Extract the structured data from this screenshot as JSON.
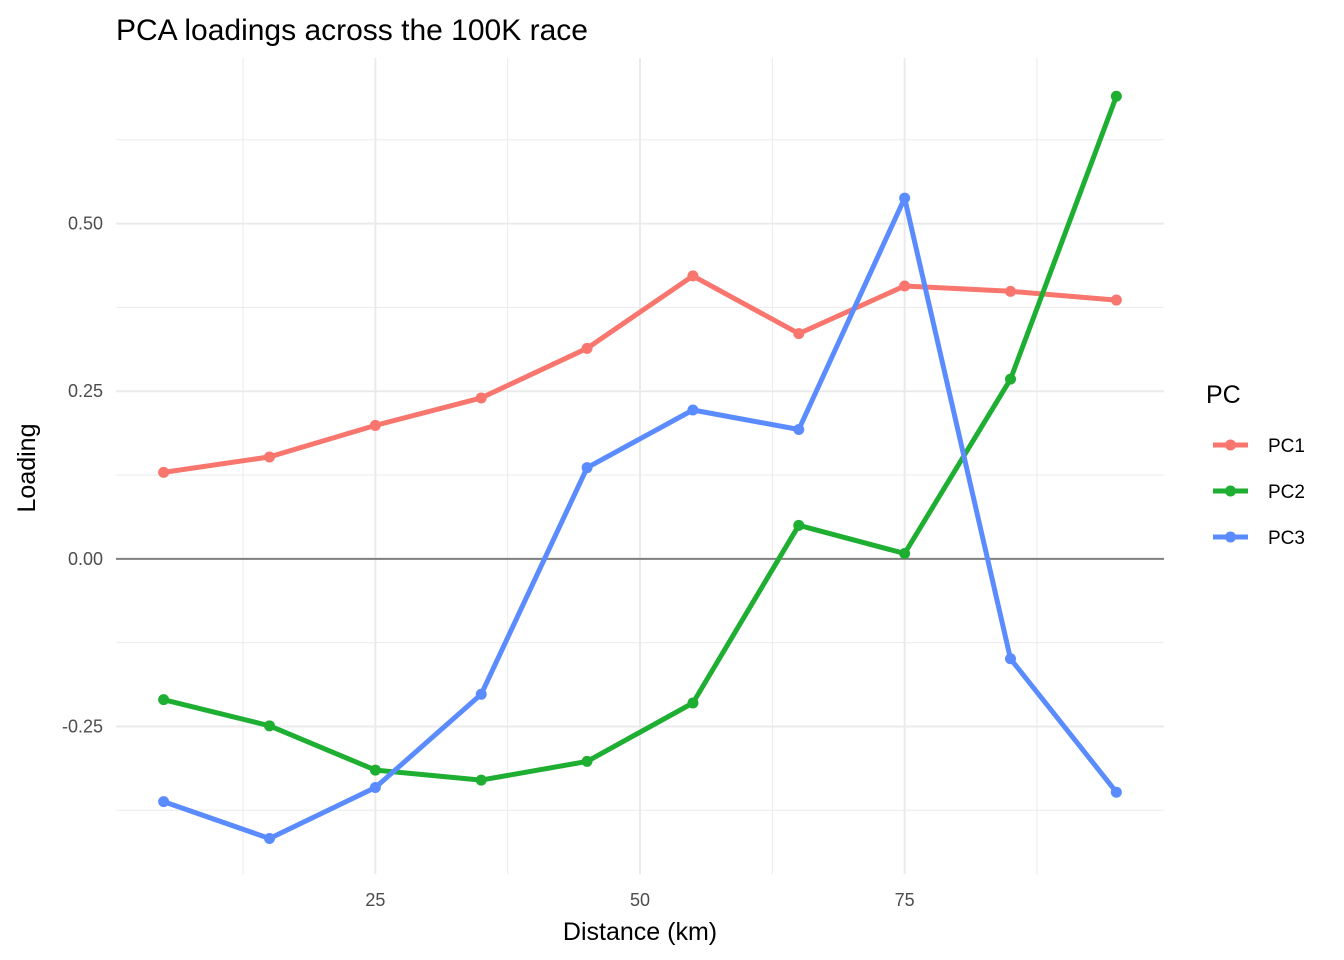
{
  "chart_data": {
    "type": "line",
    "title": "PCA loadings across the 100K race",
    "xlabel": "Distance (km)",
    "ylabel": "Loading",
    "x": [
      5,
      15,
      25,
      35,
      45,
      55,
      65,
      75,
      85,
      95
    ],
    "xticks": [
      25,
      50,
      75
    ],
    "xtick_labels": [
      "25",
      "50",
      "75"
    ],
    "yticks": [
      -0.25,
      0,
      0.25,
      0.5
    ],
    "ytick_labels": [
      "-0.25",
      "0.00",
      "0.25",
      "0.50"
    ],
    "xlim": [
      0.5,
      99.5
    ],
    "ylim": [
      -0.47,
      0.747
    ],
    "grid": true,
    "zero_line": true,
    "legend": {
      "title": "PC",
      "position": "right"
    },
    "series": [
      {
        "name": "PC1",
        "color": "#F8766D",
        "values": [
          0.129,
          0.152,
          0.199,
          0.24,
          0.314,
          0.422,
          0.336,
          0.407,
          0.399,
          0.386
        ]
      },
      {
        "name": "PC2",
        "color": "#1DAE32",
        "values": [
          -0.21,
          -0.249,
          -0.315,
          -0.33,
          -0.302,
          -0.215,
          0.05,
          0.008,
          0.268,
          0.69
        ]
      },
      {
        "name": "PC3",
        "color": "#5B8CFF",
        "values": [
          -0.362,
          -0.417,
          -0.341,
          -0.202,
          0.136,
          0.222,
          0.193,
          0.538,
          -0.149,
          -0.348
        ]
      }
    ]
  }
}
